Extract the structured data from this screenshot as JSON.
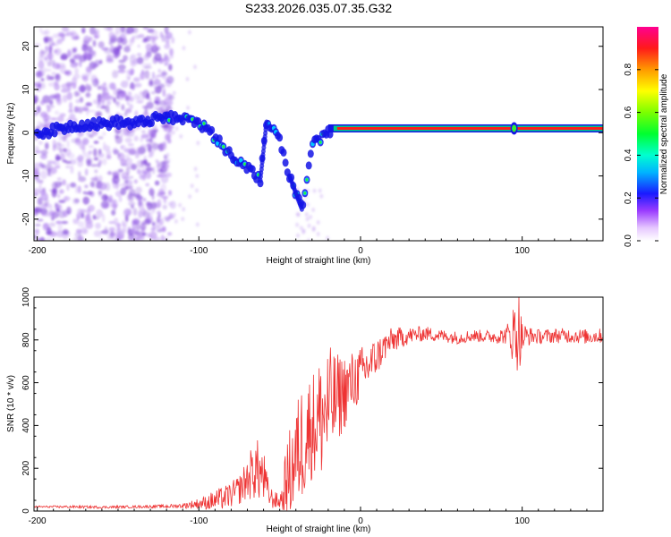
{
  "title": "S233.2026.035.07.35.G32",
  "colors": {
    "snr_line": "#ee3333",
    "axis": "#000000",
    "sparse": "#b58af0",
    "sparse_dark": "#7a3cd8",
    "track_outer": "#1414e6",
    "track_mid": "#00cc88",
    "track_core": "#ff1a1a",
    "track_edge": "#33ee33"
  },
  "chart_data": [
    {
      "type": "heatmap",
      "xlabel": "Height of straight line (km)",
      "ylabel": "Frequency (Hz)",
      "xlim": [
        -202,
        150
      ],
      "ylim": [
        -25,
        24.5
      ],
      "xticks": [
        -200,
        -100,
        0,
        100
      ],
      "xtick_labels": [
        "-200",
        "-100",
        "0",
        "100"
      ],
      "yticks": [
        20,
        10,
        0,
        -10,
        -20
      ],
      "ytick_labels": [
        "20",
        "10",
        "0",
        "-10",
        "-20"
      ],
      "colorbar": {
        "label": "Normalized spectral amplitude",
        "range": [
          0,
          1
        ],
        "ticks": [
          0.0,
          0.2,
          0.4,
          0.6,
          0.8
        ],
        "tick_labels": [
          "0.0",
          "0.2",
          "0.4",
          "0.6",
          "0.8"
        ]
      },
      "track": [
        {
          "x": -200,
          "y": 0
        },
        {
          "x": -190,
          "y": 0.5
        },
        {
          "x": -180,
          "y": 1.5
        },
        {
          "x": -170,
          "y": 2
        },
        {
          "x": -160,
          "y": 2
        },
        {
          "x": -150,
          "y": 2.5
        },
        {
          "x": -140,
          "y": 2
        },
        {
          "x": -130,
          "y": 3
        },
        {
          "x": -120,
          "y": 3.5
        },
        {
          "x": -110,
          "y": 3
        },
        {
          "x": -100,
          "y": 2.5
        },
        {
          "x": -90,
          "y": -1
        },
        {
          "x": -80,
          "y": -5
        },
        {
          "x": -70,
          "y": -8
        },
        {
          "x": -62,
          "y": -11
        },
        {
          "x": -58,
          "y": 3
        },
        {
          "x": -50,
          "y": -2
        },
        {
          "x": -44,
          "y": -10
        },
        {
          "x": -36,
          "y": -18
        },
        {
          "x": -30,
          "y": -3
        },
        {
          "x": -20,
          "y": 0
        },
        {
          "x": -10,
          "y": 1.5
        },
        {
          "x": 0,
          "y": 1
        },
        {
          "x": 50,
          "y": 1
        },
        {
          "x": 100,
          "y": 1
        },
        {
          "x": 150,
          "y": 1
        }
      ]
    },
    {
      "type": "line",
      "xlabel": "Height of straight line (km)",
      "ylabel": "SNR (10 * v/v)",
      "xlim": [
        -202,
        150
      ],
      "ylim": [
        0,
        1000
      ],
      "xticks": [
        -200,
        -100,
        0,
        100
      ],
      "xtick_labels": [
        "-200",
        "-100",
        "0",
        "100"
      ],
      "yticks": [
        0,
        200,
        400,
        600,
        800,
        1000
      ],
      "ytick_labels": [
        "0",
        "200",
        "400",
        "600",
        "800",
        "1000"
      ],
      "series": [
        {
          "name": "SNR",
          "x": [
            -202,
            -180,
            -160,
            -140,
            -120,
            -110,
            -100,
            -95,
            -90,
            -85,
            -80,
            -75,
            -70,
            -65,
            -60,
            -57,
            -55,
            -50,
            -45,
            -40,
            -35,
            -30,
            -25,
            -20,
            -15,
            -10,
            -5,
            0,
            5,
            10,
            15,
            20,
            25,
            30,
            40,
            50,
            60,
            70,
            80,
            90,
            95,
            98,
            100,
            105,
            110,
            120,
            130,
            140,
            150
          ],
          "values": [
            20,
            20,
            18,
            20,
            22,
            25,
            35,
            40,
            50,
            60,
            75,
            100,
            150,
            200,
            160,
            80,
            60,
            40,
            150,
            250,
            350,
            400,
            430,
            480,
            520,
            560,
            600,
            640,
            680,
            720,
            770,
            800,
            810,
            820,
            830,
            820,
            810,
            820,
            815,
            820,
            830,
            840,
            810,
            820,
            815,
            820,
            820,
            815,
            820
          ],
          "noise": [
            4,
            6,
            6,
            6,
            8,
            12,
            25,
            35,
            50,
            55,
            60,
            70,
            100,
            150,
            130,
            60,
            50,
            30,
            200,
            250,
            300,
            250,
            300,
            300,
            220,
            180,
            150,
            130,
            110,
            90,
            70,
            60,
            50,
            40,
            35,
            30,
            30,
            30,
            30,
            40,
            150,
            200,
            80,
            40,
            35,
            35,
            35,
            35,
            35
          ]
        }
      ]
    }
  ]
}
